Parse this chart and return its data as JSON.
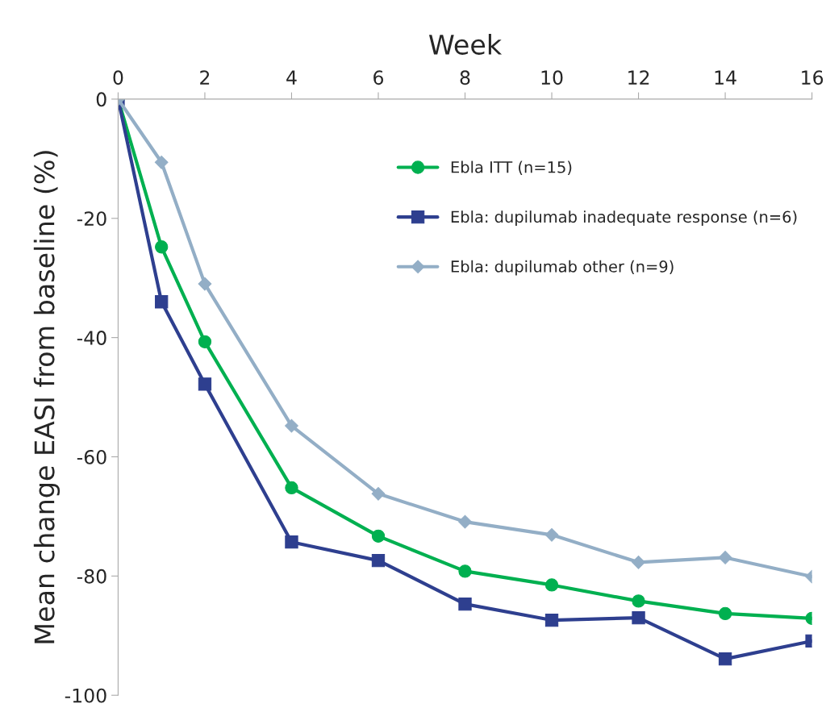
{
  "chart_data": {
    "type": "line",
    "xlabel": "Week",
    "ylabel": "Mean change EASI from baseline (%)",
    "x": [
      0,
      1,
      2,
      4,
      6,
      8,
      10,
      12,
      14,
      16
    ],
    "series": [
      {
        "name": "Ebla ITT (n=15)",
        "color": "#00b050",
        "marker": "circle",
        "values": [
          0,
          -24.8,
          -40.7,
          -65.2,
          -73.3,
          -79.2,
          -81.5,
          -84.2,
          -86.3,
          -87.1
        ]
      },
      {
        "name": "Ebla: dupilumab inadequate response (n=6)",
        "color": "#2e3f8f",
        "marker": "square",
        "values": [
          0,
          -34.0,
          -47.8,
          -74.3,
          -77.4,
          -84.7,
          -87.4,
          -87.0,
          -93.9,
          -90.9
        ]
      },
      {
        "name": "Ebla: dupilumab other (n=9)",
        "color": "#93aec6",
        "marker": "diamond",
        "values": [
          0,
          -10.6,
          -31.0,
          -54.8,
          -66.2,
          -70.9,
          -73.1,
          -77.7,
          -76.9,
          -80.1
        ]
      }
    ],
    "xlim": [
      0,
      16
    ],
    "xticks": [
      0,
      2,
      4,
      6,
      8,
      10,
      12,
      14,
      16
    ],
    "ylim": [
      -100,
      0
    ],
    "yticks": [
      -100,
      -80,
      -60,
      -40,
      -20,
      0
    ],
    "grid": false,
    "legend": "top right",
    "line_style": "solid"
  }
}
